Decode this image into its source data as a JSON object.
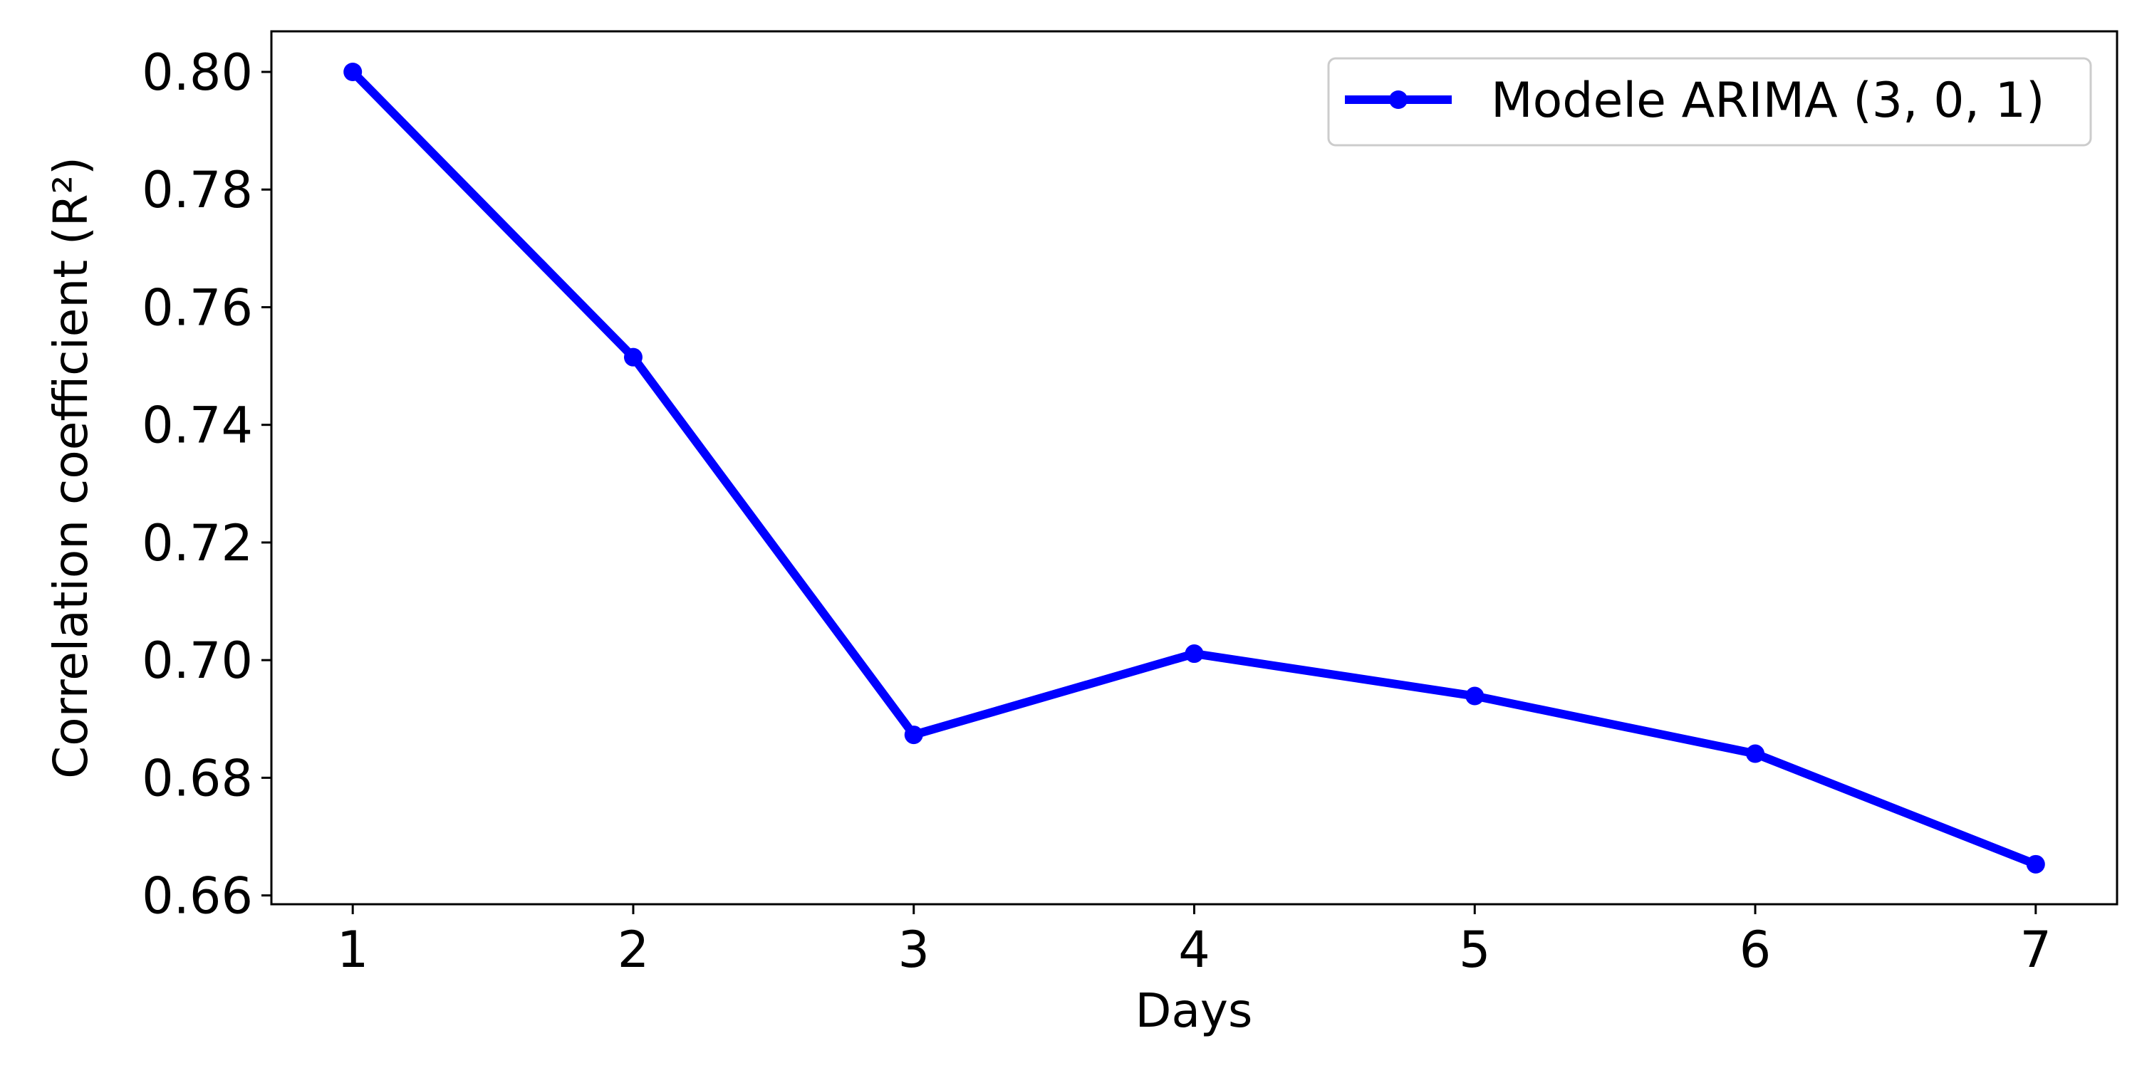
{
  "chart_data": {
    "type": "line",
    "title": "",
    "xlabel": "Days",
    "ylabel": "Correlation coefficient (R²)",
    "x": [
      1,
      2,
      3,
      4,
      5,
      6,
      7
    ],
    "xticks": [
      "1",
      "2",
      "3",
      "4",
      "5",
      "6",
      "7"
    ],
    "xlim": [
      0.71,
      7.29
    ],
    "ylim": [
      0.6585,
      0.8069
    ],
    "yticks": [
      "0.66",
      "0.68",
      "0.70",
      "0.72",
      "0.74",
      "0.76",
      "0.78",
      "0.80"
    ],
    "grid": false,
    "legend_position": "top-right",
    "series": [
      {
        "name": "Modele ARIMA (3, 0, 1)",
        "color": "#0000ff",
        "marker": "circle",
        "values": [
          0.8,
          0.7515,
          0.6873,
          0.7011,
          0.6939,
          0.6841,
          0.6653
        ]
      }
    ]
  }
}
